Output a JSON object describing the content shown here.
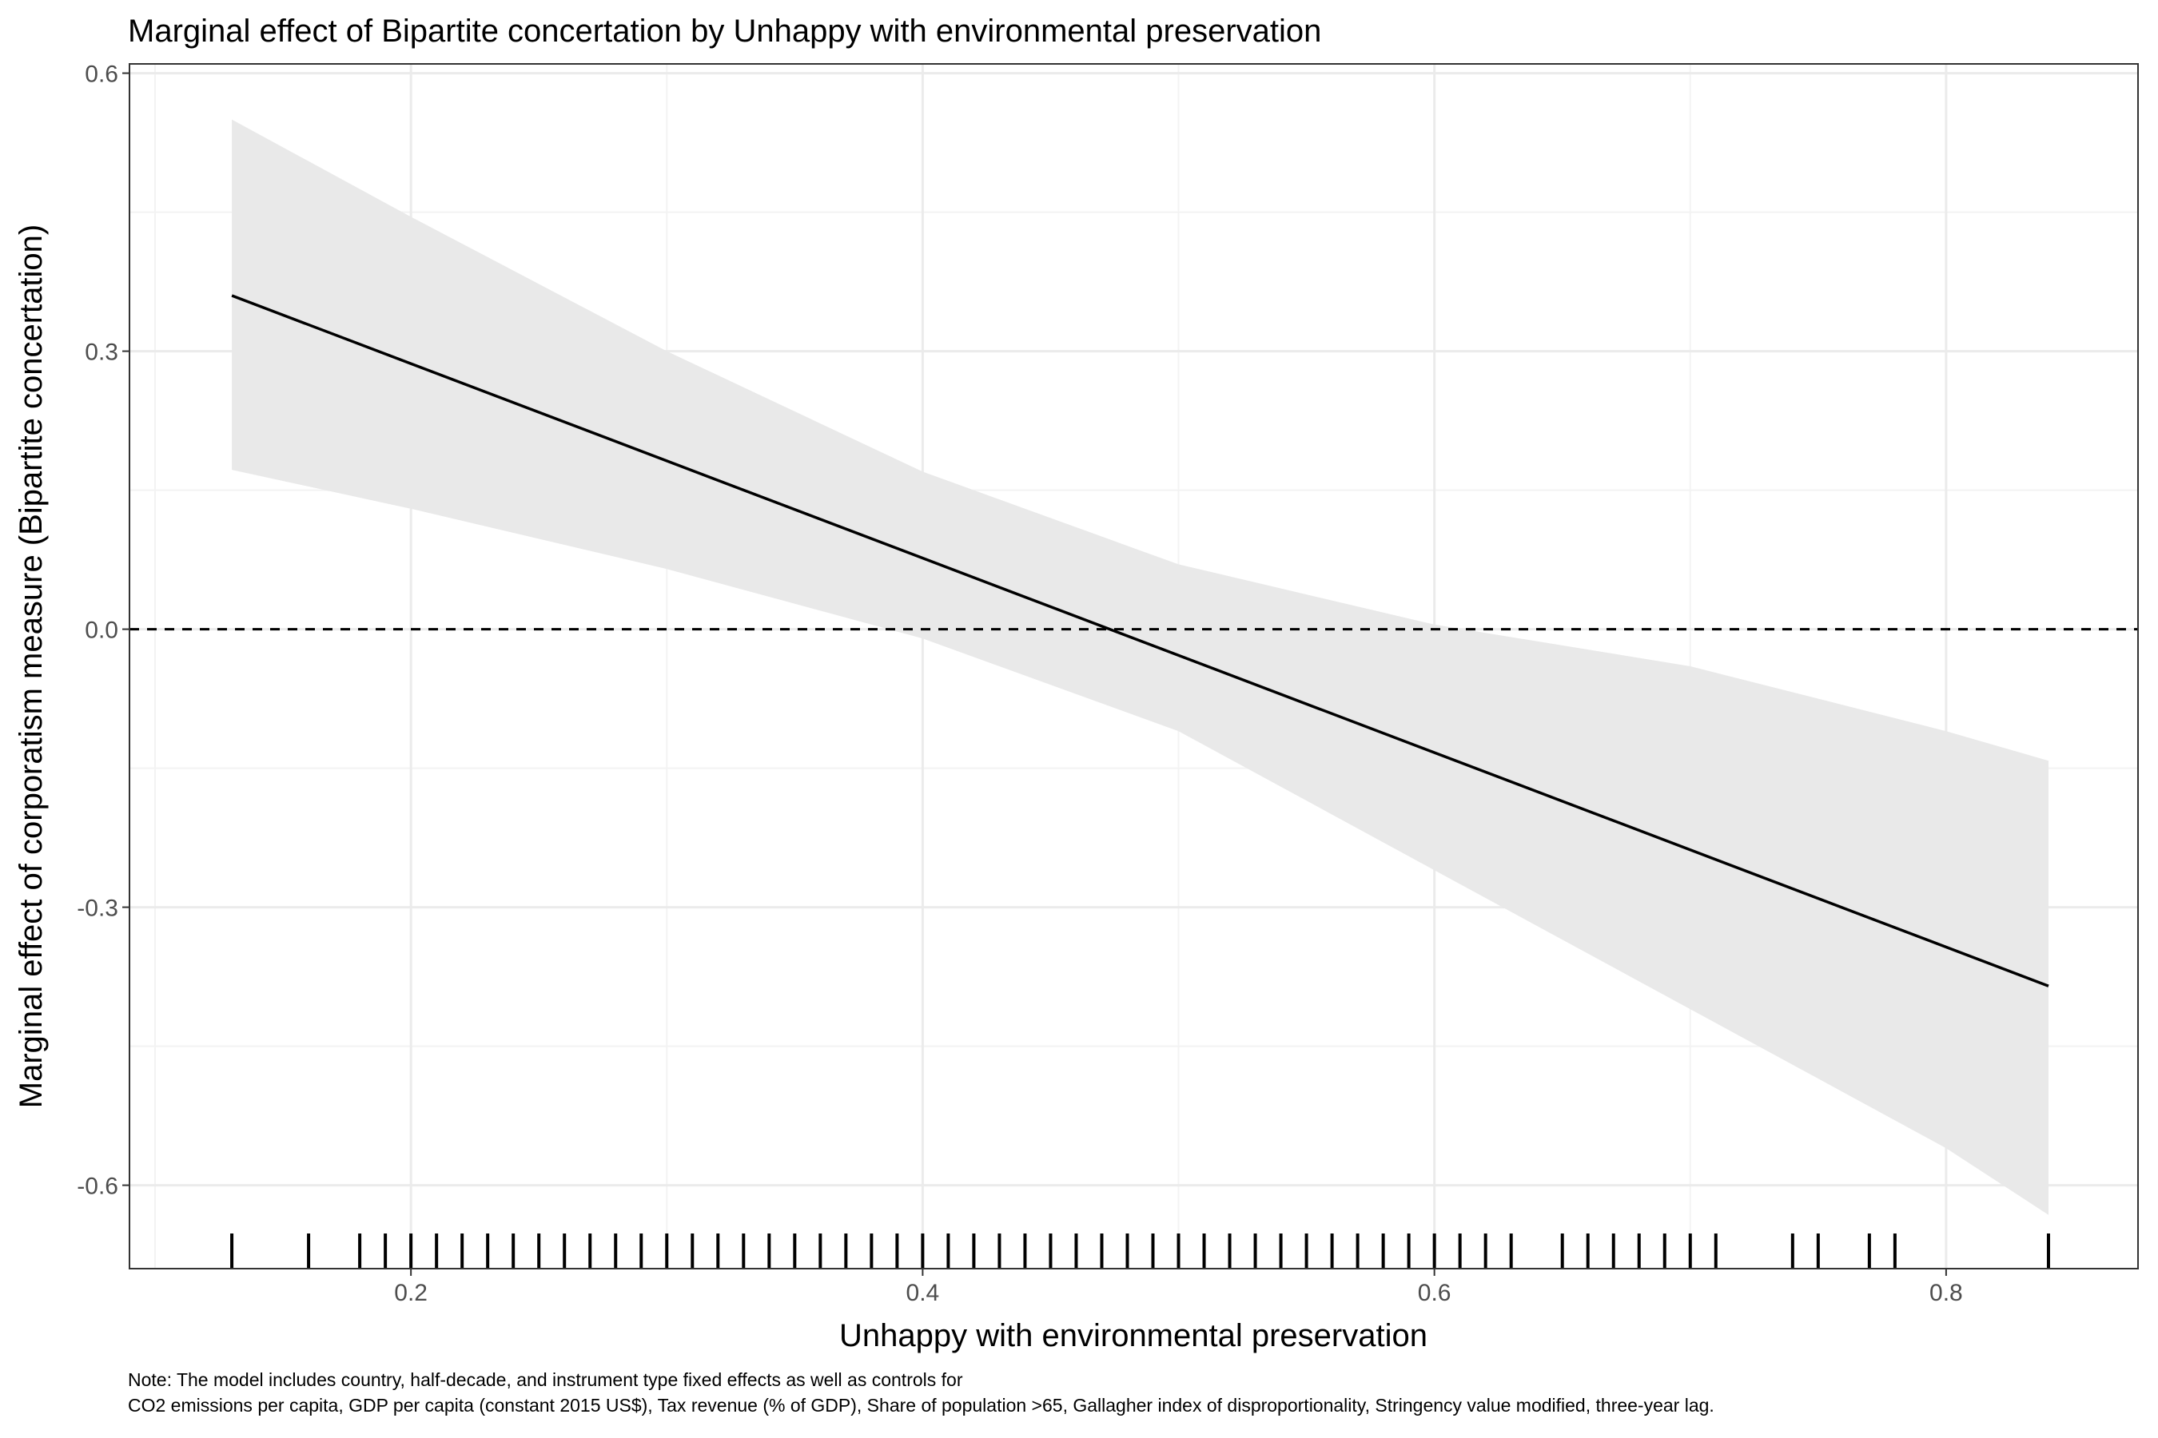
{
  "chart_data": {
    "type": "line",
    "title": "Marginal effect of Bipartite concertation by Unhappy with environmental preservation",
    "xlabel": "Unhappy with environmental preservation",
    "ylabel": "Marginal effect of corporatism measure (Bipartite concertation)",
    "xlim": [
      0.09,
      0.875
    ],
    "ylim": [
      -0.69,
      0.61
    ],
    "x_ticks": [
      0.2,
      0.4,
      0.6,
      0.8
    ],
    "x_tick_labels": [
      "0.2",
      "0.4",
      "0.6",
      "0.8"
    ],
    "y_ticks": [
      -0.6,
      -0.3,
      0.0,
      0.3,
      0.6
    ],
    "y_tick_labels": [
      "-0.6",
      "-0.3",
      "0.0",
      "0.3",
      "0.6"
    ],
    "grid": true,
    "reference_line": {
      "y": 0.0,
      "style": "dashed"
    },
    "series": [
      {
        "type": "line",
        "x": [
          0.13,
          0.84
        ],
        "y": [
          0.36,
          -0.385
        ]
      }
    ],
    "ribbon": {
      "x": [
        0.13,
        0.2,
        0.3,
        0.4,
        0.5,
        0.6,
        0.7,
        0.8,
        0.84
      ],
      "lower": [
        0.172,
        0.13,
        0.065,
        -0.01,
        -0.11,
        -0.26,
        -0.41,
        -0.56,
        -0.632
      ],
      "upper": [
        0.55,
        0.445,
        0.3,
        0.17,
        0.07,
        0.005,
        -0.04,
        -0.11,
        -0.142
      ]
    },
    "rug": [
      0.13,
      0.16,
      0.18,
      0.19,
      0.2,
      0.21,
      0.22,
      0.23,
      0.24,
      0.25,
      0.26,
      0.27,
      0.28,
      0.29,
      0.3,
      0.31,
      0.32,
      0.33,
      0.34,
      0.35,
      0.36,
      0.37,
      0.38,
      0.39,
      0.4,
      0.41,
      0.42,
      0.43,
      0.44,
      0.45,
      0.46,
      0.47,
      0.48,
      0.49,
      0.5,
      0.51,
      0.52,
      0.53,
      0.54,
      0.55,
      0.56,
      0.57,
      0.58,
      0.59,
      0.6,
      0.61,
      0.62,
      0.63,
      0.65,
      0.66,
      0.67,
      0.68,
      0.69,
      0.7,
      0.71,
      0.74,
      0.75,
      0.77,
      0.78,
      0.84
    ],
    "colors": {
      "line": "#000000",
      "ribbon": "#e9e9e9",
      "grid_major": "#ebebeb",
      "grid_minor": "#f3f3f3",
      "border": "#333333"
    }
  },
  "note": {
    "line1": "Note: The model includes country, half-decade, and instrument type fixed effects as well as controls for",
    "line2": "CO2 emissions per capita, GDP per capita (constant 2015 US$), Tax revenue (% of GDP), Share of population >65, Gallagher index of disproportionality, Stringency value modified, three-year lag."
  }
}
